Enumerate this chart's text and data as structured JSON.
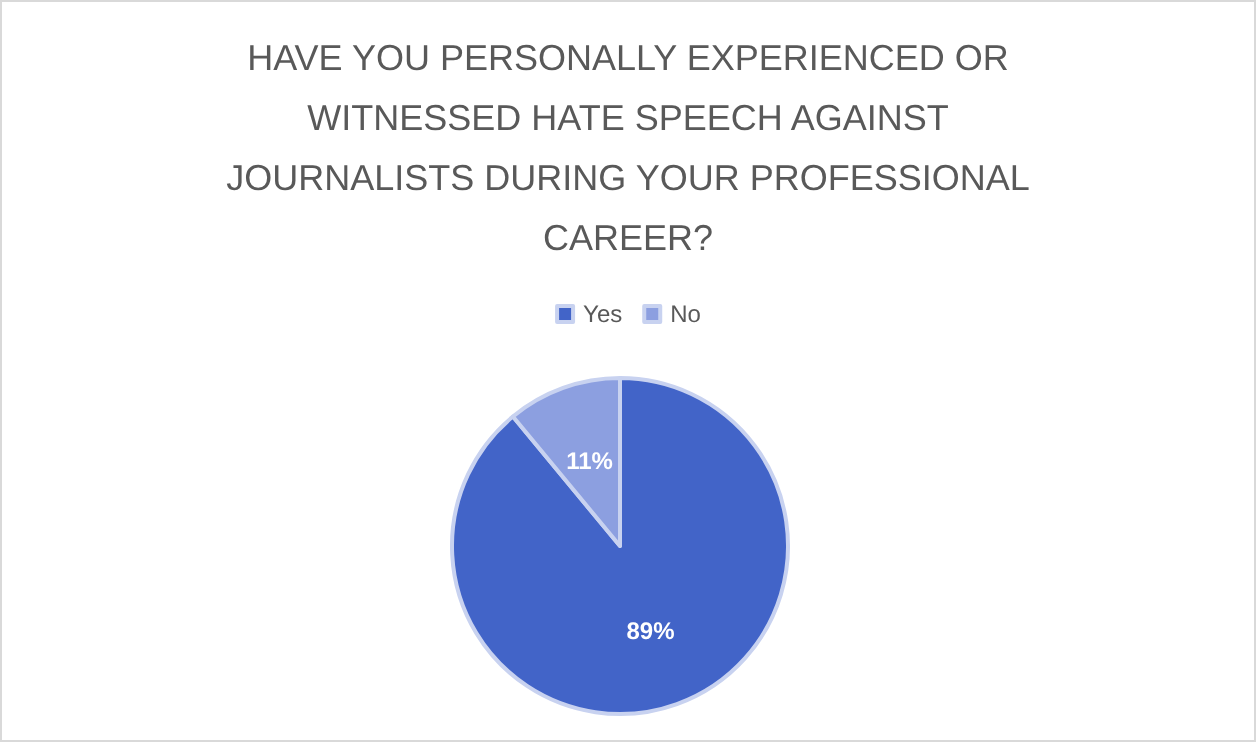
{
  "chart_data": {
    "type": "pie",
    "title": "HAVE YOU PERSONALLY EXPERIENCED OR\nWITNESSED HATE SPEECH AGAINST\nJOURNALISTS DURING YOUR PROFESSIONAL\nCAREER?",
    "categories": [
      "Yes",
      "No"
    ],
    "values": [
      89,
      11
    ],
    "colors": [
      "#4264c8",
      "#8c9fe0"
    ],
    "value_labels": [
      "89%",
      "11%"
    ],
    "legend": "top"
  }
}
